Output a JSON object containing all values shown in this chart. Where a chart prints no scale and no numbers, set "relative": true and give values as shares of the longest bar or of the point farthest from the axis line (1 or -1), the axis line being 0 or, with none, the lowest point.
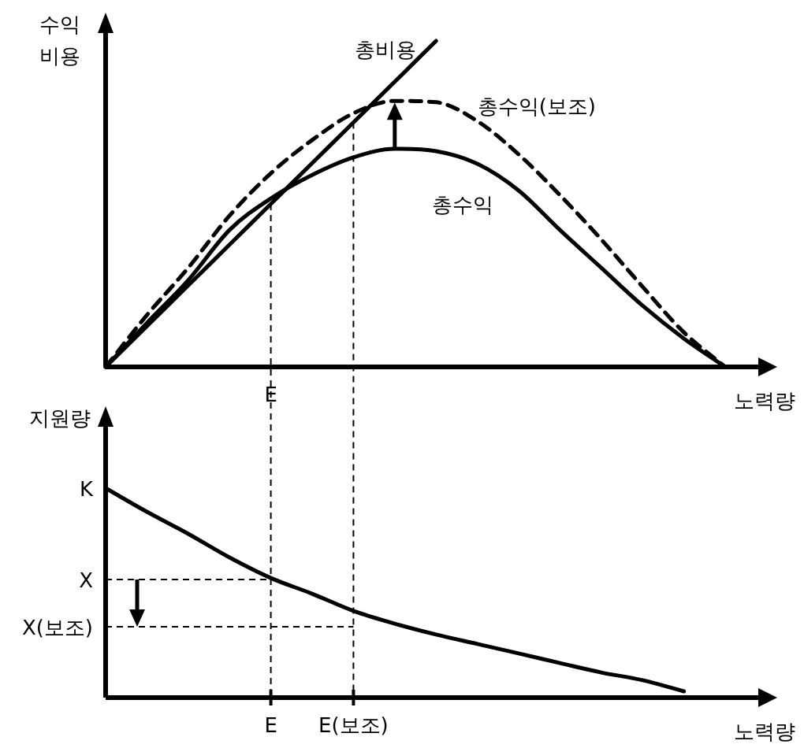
{
  "chart_data": [
    {
      "type": "line",
      "relative": true,
      "categories": [
        null,
        null,
        null,
        null,
        null,
        null,
        null,
        null,
        null,
        null,
        null,
        null,
        null,
        null,
        null,
        null
      ],
      "xlabel": "노력량",
      "ylabel": "수익 비용",
      "line_style": "solid",
      "annotations": [
        "E"
      ],
      "series": [
        {
          "name": "총비용",
          "color": "#000000",
          "values": [
            0,
            0.125,
            0.25,
            0.375,
            0.5,
            0.625,
            0.75,
            0.875,
            1,
            null,
            null,
            null,
            null,
            null,
            null,
            null
          ]
        },
        {
          "name": "총수익",
          "color": "#000000",
          "values": [
            0,
            0.135,
            0.266,
            0.42,
            0.517,
            0.589,
            0.643,
            0.669,
            0.662,
            0.623,
            0.541,
            0.42,
            0.304,
            0.188,
            0.087,
            0
          ]
        },
        {
          "name": "총수익(보조)",
          "color": "#000000",
          "line_style": "dashed",
          "values": [
            0,
            0.159,
            0.304,
            0.464,
            0.594,
            0.696,
            0.778,
            0.816,
            0.812,
            0.754,
            0.652,
            0.527,
            0.391,
            0.246,
            0.106,
            0
          ]
        }
      ]
    },
    {
      "type": "line",
      "relative": true,
      "categories": [
        null,
        null,
        null,
        null,
        "E",
        null,
        "E(보조)",
        null,
        null,
        null,
        null,
        null,
        null,
        null,
        null,
        null
      ],
      "xlabel": "노력량",
      "ylabel": "지원량",
      "line_style": "solid",
      "annotations": [
        "K"
      ],
      "ref_lines": [
        {
          "axis": "x",
          "value": "E"
        },
        {
          "axis": "x",
          "value": "E(보조)"
        },
        {
          "axis": "y",
          "value": 0.564,
          "label": "X"
        },
        {
          "axis": "y",
          "value": 0.338,
          "label": "X(보조)"
        }
      ],
      "series": [
        {
          "color": "#000000",
          "values": [
            1,
            0.887,
            0.782,
            0.669,
            0.571,
            0.496,
            0.414,
            0.353,
            0.301,
            0.256,
            0.211,
            0.165,
            0.12,
            0.083,
            0.03,
            null
          ]
        }
      ]
    }
  ]
}
